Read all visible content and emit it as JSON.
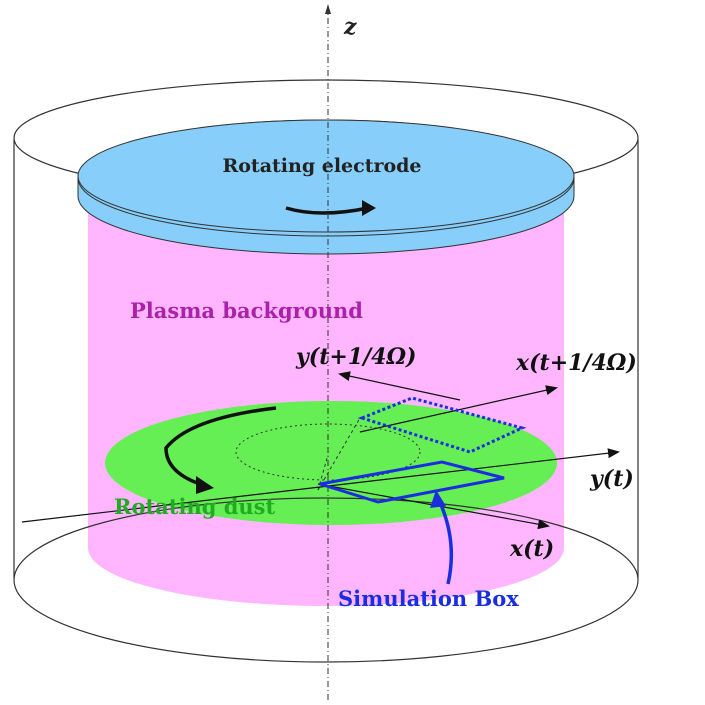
{
  "axis": {
    "z_label": "z"
  },
  "labels": {
    "electrode": "Rotating electrode",
    "plasma": "Plasma background",
    "dust": "Rotating dust",
    "simulation_box": "Simulation Box",
    "y_t": "y(t)",
    "x_t": "x(t)",
    "y_t_quarter": "y(t+1/4Ω)",
    "x_t_quarter": "x(t+1/4Ω)"
  },
  "colors": {
    "electrode": "#87cefa",
    "plasma": "#ffb6ff",
    "dust": "#66ee55",
    "plasma_text": "#aa22aa",
    "dust_text": "#22aa22",
    "box": "#1a2ee0",
    "outline": "#333333"
  }
}
